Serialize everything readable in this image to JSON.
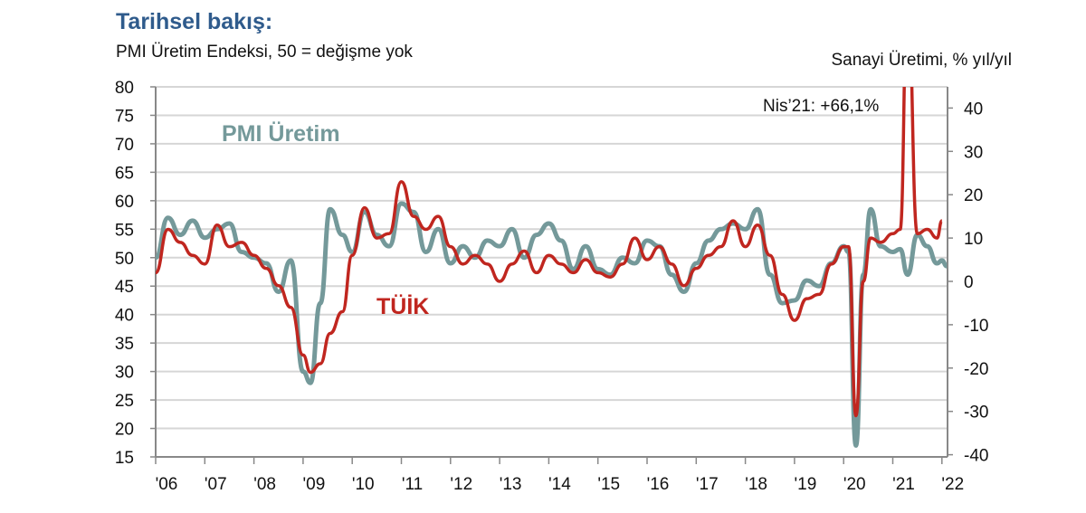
{
  "chart_data": {
    "type": "line",
    "title": "Tarihsel bakış:",
    "ylabel_left": "PMI Üretim Endeksi, 50 = değişme yok",
    "ylabel_right": "Sanayi Üretimi, % yıl/yıl",
    "ylim_left": [
      15,
      80
    ],
    "ylim_right": [
      -40,
      45
    ],
    "yticks_left": [
      "80",
      "75",
      "70",
      "65",
      "60",
      "55",
      "50",
      "45",
      "40",
      "35",
      "30",
      "25",
      "20",
      "15"
    ],
    "yticks_right": [
      "40",
      "30",
      "20",
      "10",
      "0",
      "-10",
      "-20",
      "-30",
      "-40"
    ],
    "xticks": [
      "'06",
      "'07",
      "'08",
      "'09",
      "'10",
      "'11",
      "'12",
      "'13",
      "'14",
      "'15",
      "'16",
      "'17",
      "'18",
      "'19",
      "'20",
      "'21",
      "'22"
    ],
    "grid": true,
    "annotation": "Nis’21: +66,1%",
    "series": [
      {
        "name": "PMI Üretim",
        "axis": "left",
        "color": "#74999a",
        "x": [
          2006.0,
          2006.25,
          2006.5,
          2006.75,
          2007.0,
          2007.25,
          2007.5,
          2007.75,
          2008.0,
          2008.25,
          2008.5,
          2008.75,
          2009.0,
          2009.15,
          2009.35,
          2009.55,
          2009.8,
          2010.0,
          2010.25,
          2010.5,
          2010.75,
          2011.0,
          2011.25,
          2011.5,
          2011.75,
          2012.0,
          2012.25,
          2012.5,
          2012.75,
          2013.0,
          2013.25,
          2013.5,
          2013.75,
          2014.0,
          2014.25,
          2014.5,
          2014.75,
          2015.0,
          2015.25,
          2015.5,
          2015.75,
          2016.0,
          2016.25,
          2016.5,
          2016.75,
          2017.0,
          2017.25,
          2017.5,
          2017.75,
          2018.0,
          2018.25,
          2018.5,
          2018.75,
          2019.0,
          2019.25,
          2019.5,
          2019.75,
          2020.0,
          2020.1,
          2020.25,
          2020.4,
          2020.55,
          2020.75,
          2021.0,
          2021.15,
          2021.3,
          2021.5,
          2021.7,
          2021.9,
          2022.0,
          2022.1
        ],
        "values": [
          50,
          57,
          54,
          56.5,
          53.5,
          55,
          56,
          51,
          50,
          49,
          44,
          49.5,
          30,
          28,
          42,
          58.5,
          54,
          51,
          58,
          54,
          52,
          59.5,
          58,
          51,
          55,
          49,
          52,
          50,
          53,
          52,
          55,
          50,
          54,
          56,
          53,
          48,
          52,
          48,
          47,
          50,
          49,
          53,
          52,
          47,
          44,
          49,
          53,
          55,
          56,
          55,
          58.5,
          47,
          42,
          42.5,
          46,
          45,
          49,
          52,
          51,
          17,
          47,
          58.5,
          52,
          51,
          51.5,
          47,
          54,
          52,
          49,
          49.5,
          48.5
        ]
      },
      {
        "name": "TÜİK",
        "axis": "right",
        "color": "#c0261f",
        "x": [
          2006.0,
          2006.25,
          2006.5,
          2006.75,
          2007.0,
          2007.25,
          2007.5,
          2007.75,
          2008.0,
          2008.25,
          2008.5,
          2008.75,
          2009.0,
          2009.15,
          2009.35,
          2009.55,
          2009.8,
          2010.0,
          2010.25,
          2010.5,
          2010.75,
          2011.0,
          2011.25,
          2011.5,
          2011.75,
          2012.0,
          2012.25,
          2012.5,
          2012.75,
          2013.0,
          2013.25,
          2013.5,
          2013.75,
          2014.0,
          2014.25,
          2014.5,
          2014.75,
          2015.0,
          2015.25,
          2015.5,
          2015.75,
          2016.0,
          2016.25,
          2016.5,
          2016.75,
          2017.0,
          2017.25,
          2017.5,
          2017.75,
          2018.0,
          2018.25,
          2018.5,
          2018.75,
          2019.0,
          2019.25,
          2019.5,
          2019.75,
          2020.0,
          2020.1,
          2020.25,
          2020.4,
          2020.55,
          2020.75,
          2021.0,
          2021.15,
          2021.3,
          2021.5,
          2021.7,
          2021.9,
          2022.0
        ],
        "values": [
          2,
          12,
          9,
          6,
          4,
          13,
          8,
          9,
          6,
          3,
          -1,
          -6,
          -17,
          -21,
          -19,
          -12,
          -7,
          6,
          17,
          10,
          11,
          23,
          15,
          12,
          15,
          8,
          4,
          6,
          4,
          0,
          4,
          7,
          2,
          6,
          4,
          2,
          5,
          2,
          1,
          4,
          10,
          5,
          8,
          4,
          -1,
          3,
          6,
          8,
          14,
          8,
          13,
          6,
          -3,
          -9,
          -4,
          -3,
          4,
          8,
          8,
          -31,
          0,
          10,
          9,
          11,
          12,
          66.1,
          11,
          12,
          10,
          14
        ]
      }
    ]
  }
}
